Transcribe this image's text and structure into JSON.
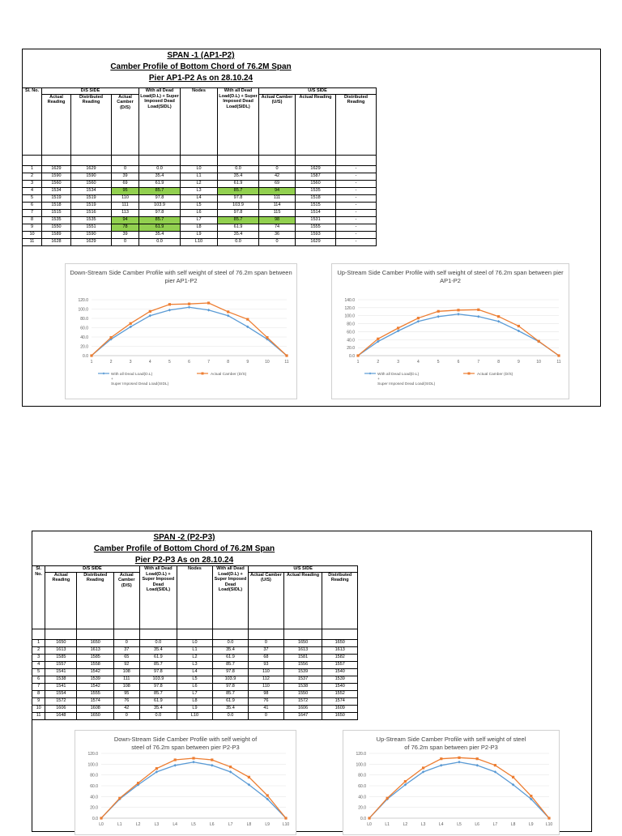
{
  "spans": [
    {
      "title1": "SPAN -1 (AP1-P2)",
      "title2": "Camber Profile of Bottom Chord of 76.2M Span",
      "title3": "Pier AP1-P2 As on 28.10.24",
      "headers": {
        "sl": "Sl. No.",
        "ds_side": "D/S SIDE",
        "us_side": "U/S SIDE",
        "actual_reading": "Actual Reading",
        "distributed_reading": "Distributed Reading",
        "actual_camber_ds": "Actual Camber (D/S)",
        "with_all_dead_load": "With all Dead Load(D.L) + Super Imposed Dead Load(SIDL)",
        "nodes": "Nodes",
        "actual_camber_us": "Actual Camber (U/S)"
      },
      "rows": [
        {
          "sl": "1",
          "ds_actual": "1629",
          "ds_dist": "1629",
          "ds_camber": "0",
          "ds_dl": "0.0",
          "node": "L0",
          "us_dl": "0.0",
          "us_camber": "0",
          "us_actual": "1629",
          "us_dist": "-"
        },
        {
          "sl": "2",
          "ds_actual": "1590",
          "ds_dist": "1590",
          "ds_camber": "39",
          "ds_dl": "35.4",
          "node": "L1",
          "us_dl": "35.4",
          "us_camber": "42",
          "us_actual": "1587",
          "us_dist": "-"
        },
        {
          "sl": "3",
          "ds_actual": "1560",
          "ds_dist": "1560",
          "ds_camber": "69",
          "ds_dl": "61.9",
          "node": "L2",
          "us_dl": "61.9",
          "us_camber": "69",
          "us_actual": "1560",
          "us_dist": "-"
        },
        {
          "sl": "4",
          "ds_actual": "1534",
          "ds_dist": "1534",
          "ds_camber": "95",
          "ds_dl": "85.7",
          "node": "L3",
          "us_dl": "85.7",
          "us_camber": "94",
          "us_actual": "1535",
          "us_dist": "-"
        },
        {
          "sl": "5",
          "ds_actual": "1519",
          "ds_dist": "1519",
          "ds_camber": "110",
          "ds_dl": "97.8",
          "node": "L4",
          "us_dl": "97.8",
          "us_camber": "111",
          "us_actual": "1518",
          "us_dist": "-"
        },
        {
          "sl": "6",
          "ds_actual": "1518",
          "ds_dist": "1519",
          "ds_camber": "111",
          "ds_dl": "103.9",
          "node": "L5",
          "us_dl": "103.9",
          "us_camber": "114",
          "us_actual": "1515",
          "us_dist": "-"
        },
        {
          "sl": "7",
          "ds_actual": "1515",
          "ds_dist": "1516",
          "ds_camber": "113",
          "ds_dl": "97.8",
          "node": "L6",
          "us_dl": "97.8",
          "us_camber": "115",
          "us_actual": "1514",
          "us_dist": "-"
        },
        {
          "sl": "8",
          "ds_actual": "1535",
          "ds_dist": "1535",
          "ds_camber": "94",
          "ds_dl": "85.7",
          "node": "L7",
          "us_dl": "85.7",
          "us_camber": "98",
          "us_actual": "1531",
          "us_dist": "-"
        },
        {
          "sl": "9",
          "ds_actual": "1550",
          "ds_dist": "1551",
          "ds_camber": "78",
          "ds_dl": "61.9",
          "node": "L8",
          "us_dl": "61.9",
          "us_camber": "74",
          "us_actual": "1555",
          "us_dist": "-"
        },
        {
          "sl": "10",
          "ds_actual": "1589",
          "ds_dist": "1590",
          "ds_camber": "39",
          "ds_dl": "35.4",
          "node": "L9",
          "us_dl": "35.4",
          "us_camber": "36",
          "us_actual": "1593",
          "us_dist": "-"
        },
        {
          "sl": "11",
          "ds_actual": "1628",
          "ds_dist": "1629",
          "ds_camber": "0",
          "ds_dl": "0.0",
          "node": "L10",
          "us_dl": "0.0",
          "us_camber": "0",
          "us_actual": "1629",
          "us_dist": "-"
        }
      ],
      "highlight_color": "#92d050"
    },
    {
      "title1": "SPAN -2 (P2-P3)",
      "title2": "Camber Profile of Bottom Chord of 76.2M Span",
      "title3": "Pier P2-P3 As on 28.10.24",
      "headers": {
        "sl": "Sl. No.",
        "ds_side": "D/S SIDE",
        "us_side": "U/S SIDE",
        "actual_reading": "Actual Reading",
        "distributed_reading": "Distributed Reading",
        "actual_camber_ds": "Actual Camber (D/S)",
        "with_all_dead_load": "With all Dead Load(D.L) + Super Imposed Dead Load(SIDL)",
        "nodes": "Nodes",
        "actual_camber_us": "Actual Camber (U/S)"
      },
      "rows": [
        {
          "sl": "1",
          "ds_actual": "1650",
          "ds_dist": "1650",
          "ds_camber": "0",
          "ds_dl": "0.0",
          "node": "L0",
          "us_dl": "0.0",
          "us_camber": "0",
          "us_actual": "1650",
          "us_dist": "1650"
        },
        {
          "sl": "2",
          "ds_actual": "1613",
          "ds_dist": "1613",
          "ds_camber": "37",
          "ds_dl": "35.4",
          "node": "L1",
          "us_dl": "35.4",
          "us_camber": "37",
          "us_actual": "1613",
          "us_dist": "1613"
        },
        {
          "sl": "3",
          "ds_actual": "1585",
          "ds_dist": "1585",
          "ds_camber": "65",
          "ds_dl": "61.9",
          "node": "L2",
          "us_dl": "61.9",
          "us_camber": "68",
          "us_actual": "1581",
          "us_dist": "1582"
        },
        {
          "sl": "4",
          "ds_actual": "1557",
          "ds_dist": "1558",
          "ds_camber": "92",
          "ds_dl": "85.7",
          "node": "L3",
          "us_dl": "85.7",
          "us_camber": "93",
          "us_actual": "1556",
          "us_dist": "1557"
        },
        {
          "sl": "5",
          "ds_actual": "1541",
          "ds_dist": "1542",
          "ds_camber": "108",
          "ds_dl": "97.8",
          "node": "L4",
          "us_dl": "97.8",
          "us_camber": "110",
          "us_actual": "1539",
          "us_dist": "1540"
        },
        {
          "sl": "6",
          "ds_actual": "1538",
          "ds_dist": "1539",
          "ds_camber": "111",
          "ds_dl": "103.9",
          "node": "L5",
          "us_dl": "103.9",
          "us_camber": "112",
          "us_actual": "1537",
          "us_dist": "1539"
        },
        {
          "sl": "7",
          "ds_actual": "1541",
          "ds_dist": "1542",
          "ds_camber": "108",
          "ds_dl": "97.8",
          "node": "L6",
          "us_dl": "97.8",
          "us_camber": "110",
          "us_actual": "1538",
          "us_dist": "1540"
        },
        {
          "sl": "8",
          "ds_actual": "1554",
          "ds_dist": "1555",
          "ds_camber": "95",
          "ds_dl": "85.7",
          "node": "L7",
          "us_dl": "85.7",
          "us_camber": "98",
          "us_actual": "1550",
          "us_dist": "1552"
        },
        {
          "sl": "9",
          "ds_actual": "1572",
          "ds_dist": "1574",
          "ds_camber": "76",
          "ds_dl": "61.9",
          "node": "L8",
          "us_dl": "61.9",
          "us_camber": "76",
          "us_actual": "1572",
          "us_dist": "1574"
        },
        {
          "sl": "10",
          "ds_actual": "1606",
          "ds_dist": "1608",
          "ds_camber": "42",
          "ds_dl": "35.4",
          "node": "L9",
          "us_dl": "35.4",
          "us_camber": "41",
          "us_actual": "1606",
          "us_dist": "1609"
        },
        {
          "sl": "11",
          "ds_actual": "1648",
          "ds_dist": "1650",
          "ds_camber": "0",
          "ds_dl": "0.0",
          "node": "L10",
          "us_dl": "0.0",
          "us_camber": "0",
          "us_actual": "1647",
          "us_dist": "1650"
        }
      ],
      "highlight_color": "#92d050"
    }
  ],
  "chart_data": [
    {
      "type": "line",
      "title": "Down-Stream Side Camber Profile with self weight of steel of 76.2m span between pier AP1-P2",
      "categories": [
        "1",
        "2",
        "3",
        "4",
        "5",
        "6",
        "7",
        "8",
        "9",
        "10",
        "11"
      ],
      "yticks": [
        "0.0",
        "20.0",
        "40.0",
        "60.0",
        "80.0",
        "100.0",
        "120.0"
      ],
      "ylim": [
        0,
        120
      ],
      "series": [
        {
          "name": "With all Dead Load(D.L) + Super Imposed Dead Load(SIDL)",
          "color": "#5b9bd5",
          "values": [
            0.0,
            35.4,
            61.9,
            85.7,
            97.8,
            103.9,
            97.8,
            85.7,
            61.9,
            35.4,
            0.0
          ]
        },
        {
          "name": "Actual Camber (D/S)",
          "color": "#ed7d31",
          "values": [
            0,
            39,
            69,
            95,
            110,
            111,
            113,
            94,
            78,
            39,
            0
          ]
        }
      ]
    },
    {
      "type": "line",
      "title": "Up-Stream Side Camber Profile with self weight of steel of 76.2m span between pier AP1-P2",
      "categories": [
        "1",
        "2",
        "3",
        "4",
        "5",
        "6",
        "7",
        "8",
        "9",
        "10",
        "11"
      ],
      "yticks": [
        "0.0",
        "20.0",
        "40.0",
        "60.0",
        "80.0",
        "100.0",
        "120.0",
        "140.0"
      ],
      "ylim": [
        0,
        140
      ],
      "series": [
        {
          "name": "With all Dead Load(D.L) + Super Imposed Dead Load(SIDL)",
          "color": "#5b9bd5",
          "values": [
            0.0,
            35.4,
            61.9,
            85.7,
            97.8,
            103.9,
            97.8,
            85.7,
            61.9,
            35.4,
            0.0
          ]
        },
        {
          "name": "Actual Camber (D/S)",
          "color": "#ed7d31",
          "values": [
            0,
            42,
            69,
            94,
            111,
            114,
            115,
            98,
            74,
            36,
            0
          ]
        }
      ]
    },
    {
      "type": "line",
      "title": "Down-Stream Side Camber Profile with self weight of steel of 76.2m span between pier P2-P3",
      "categories": [
        "L0",
        "L1",
        "L2",
        "L3",
        "L4",
        "L5",
        "L6",
        "L7",
        "L8",
        "L9",
        "L10"
      ],
      "yticks": [
        "0.0",
        "20.0",
        "40.0",
        "60.0",
        "80.0",
        "100.0",
        "120.0"
      ],
      "ylim": [
        0,
        120
      ],
      "series": [
        {
          "color": "#5b9bd5",
          "values": [
            0.0,
            35.4,
            61.9,
            85.7,
            97.8,
            103.9,
            97.8,
            85.7,
            61.9,
            35.4,
            0.0
          ]
        },
        {
          "color": "#ed7d31",
          "values": [
            0,
            37,
            65,
            92,
            108,
            111,
            108,
            95,
            76,
            42,
            0
          ]
        }
      ]
    },
    {
      "type": "line",
      "title": "Up-Stream Side Camber Profile with self weight of steel of 76.2m span between pier P2-P3",
      "categories": [
        "L0",
        "L1",
        "L2",
        "L3",
        "L4",
        "L5",
        "L6",
        "L7",
        "L8",
        "L9",
        "L10"
      ],
      "yticks": [
        "0.0",
        "20.0",
        "40.0",
        "60.0",
        "80.0",
        "100.0",
        "120.0"
      ],
      "ylim": [
        0,
        120
      ],
      "series": [
        {
          "color": "#5b9bd5",
          "values": [
            0.0,
            35.4,
            61.9,
            85.7,
            97.8,
            103.9,
            97.8,
            85.7,
            61.9,
            35.4,
            0.0
          ]
        },
        {
          "color": "#ed7d31",
          "values": [
            0,
            37,
            68,
            93,
            110,
            112,
            110,
            98,
            76,
            41,
            0
          ]
        }
      ]
    }
  ]
}
